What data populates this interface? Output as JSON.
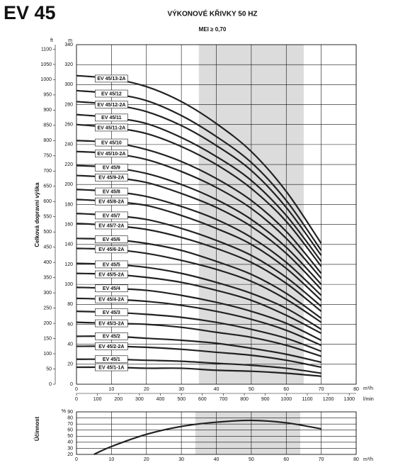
{
  "chart_data": [
    {
      "type": "line",
      "title": "EV 45",
      "subtitle": "VÝKONOVÉ KŘIVKY 50 HZ",
      "annotation": "MEI ≥ 0,70",
      "ylabel": "Celková dopravní výška",
      "y_unit": "m",
      "y2_unit": "ft",
      "xlabel": "m³/h",
      "x2label": "l/min",
      "x": [
        0,
        10,
        20,
        30,
        40,
        50,
        60,
        70
      ],
      "series": [
        {
          "name": "EV 45/13-2A",
          "color": "#222222",
          "values": [
            309,
            306,
            298,
            283,
            261,
            233,
            193,
            141
          ]
        },
        {
          "name": "EV 45/12",
          "color": "#222222",
          "values": [
            294,
            291,
            284,
            269,
            248,
            222,
            184,
            134
          ]
        },
        {
          "name": "EV 45/12-2A",
          "color": "#222222",
          "values": [
            283,
            280,
            273,
            259,
            239,
            214,
            177,
            129
          ]
        },
        {
          "name": "EV 45/11",
          "color": "#222222",
          "values": [
            270,
            267,
            261,
            247,
            228,
            204,
            169,
            123
          ]
        },
        {
          "name": "EV 45/11-2A",
          "color": "#222222",
          "values": [
            260,
            257,
            251,
            238,
            220,
            196,
            163,
            118
          ]
        },
        {
          "name": "EV 45/10",
          "color": "#222222",
          "values": [
            244,
            242,
            235,
            223,
            206,
            184,
            153,
            111
          ]
        },
        {
          "name": "EV 45/10-2A",
          "color": "#222222",
          "values": [
            233,
            231,
            225,
            213,
            197,
            176,
            146,
            106
          ]
        },
        {
          "name": "EV 45/9",
          "color": "#222222",
          "values": [
            219,
            217,
            211,
            200,
            185,
            165,
            137,
            100
          ]
        },
        {
          "name": "EV 45/9-2A",
          "color": "#222222",
          "values": [
            209,
            207,
            202,
            191,
            177,
            158,
            131,
            95
          ]
        },
        {
          "name": "EV 45/8",
          "color": "#222222",
          "values": [
            195,
            193,
            188,
            178,
            165,
            147,
            122,
            89
          ]
        },
        {
          "name": "EV 45/8-2A",
          "color": "#222222",
          "values": [
            185,
            183,
            179,
            169,
            156,
            140,
            116,
            84
          ]
        },
        {
          "name": "EV 45/7",
          "color": "#222222",
          "values": [
            171,
            169,
            165,
            156,
            144,
            129,
            107,
            78
          ]
        },
        {
          "name": "EV 45/7-2A",
          "color": "#222222",
          "values": [
            161,
            159,
            155,
            147,
            136,
            122,
            101,
            73
          ]
        },
        {
          "name": "EV 45/6",
          "color": "#222222",
          "values": [
            146,
            145,
            141,
            134,
            123,
            110,
            91,
            66
          ]
        },
        {
          "name": "EV 45/6-2A",
          "color": "#222222",
          "values": [
            136,
            135,
            131,
            124,
            115,
            103,
            85,
            62
          ]
        },
        {
          "name": "EV 45/5",
          "color": "#222222",
          "values": [
            121,
            120,
            117,
            111,
            102,
            91,
            76,
            55
          ]
        },
        {
          "name": "EV 45/5-2A",
          "color": "#222222",
          "values": [
            111,
            110,
            107,
            102,
            94,
            84,
            69,
            51
          ]
        },
        {
          "name": "EV 45/4",
          "color": "#222222",
          "values": [
            97,
            96,
            94,
            89,
            82,
            73,
            61,
            44
          ]
        },
        {
          "name": "EV 45/4-2A",
          "color": "#222222",
          "values": [
            86,
            85,
            83,
            79,
            73,
            65,
            54,
            39
          ]
        },
        {
          "name": "EV 45/3",
          "color": "#222222",
          "values": [
            73,
            72,
            70,
            67,
            62,
            55,
            46,
            33
          ]
        },
        {
          "name": "EV 45/3-2A",
          "color": "#222222",
          "values": [
            62,
            61,
            60,
            57,
            52,
            47,
            39,
            28
          ]
        },
        {
          "name": "EV 45/2",
          "color": "#222222",
          "values": [
            48,
            48,
            46,
            44,
            41,
            36,
            30,
            22
          ]
        },
        {
          "name": "EV 45/2-2A",
          "color": "#222222",
          "values": [
            38,
            38,
            37,
            35,
            32,
            29,
            24,
            17
          ]
        },
        {
          "name": "EV 45/1",
          "color": "#222222",
          "values": [
            25,
            25,
            24,
            23,
            21,
            19,
            16,
            11
          ]
        },
        {
          "name": "EV 45/1-1A",
          "color": "#222222",
          "values": [
            17,
            17,
            16,
            16,
            14,
            13,
            11,
            8
          ]
        }
      ],
      "xlim": [
        0,
        80
      ],
      "xticks": [
        0,
        10,
        20,
        30,
        40,
        50,
        60,
        70,
        80
      ],
      "x2lim": [
        0,
        1333
      ],
      "x2ticks": [
        0,
        100,
        200,
        300,
        400,
        500,
        600,
        700,
        800,
        900,
        1000,
        1100,
        1200,
        1300
      ],
      "ylim": [
        0,
        340
      ],
      "yticks": [
        0,
        20,
        40,
        60,
        80,
        100,
        120,
        140,
        160,
        180,
        200,
        220,
        240,
        260,
        280,
        300,
        320,
        340
      ],
      "y2lim": [
        0,
        1115
      ],
      "y2ticks": [
        0,
        50,
        100,
        150,
        200,
        250,
        300,
        350,
        400,
        450,
        500,
        550,
        600,
        650,
        700,
        750,
        800,
        850,
        900,
        950,
        1000,
        1050,
        1100
      ],
      "highlight": [
        35,
        65
      ],
      "highlight_color": "#dcdcdc",
      "grid": true
    },
    {
      "type": "line",
      "ylabel": "Účinnost",
      "y_unit": "%",
      "xlabel": "m³/h",
      "x": [
        5,
        10,
        20,
        30,
        40,
        50,
        60,
        70
      ],
      "values": [
        20,
        33,
        53,
        66,
        73,
        76,
        72,
        62
      ],
      "color": "#222222",
      "xlim": [
        0,
        80
      ],
      "xticks": [
        0,
        10,
        20,
        30,
        40,
        50,
        60,
        70,
        80
      ],
      "ylim": [
        20,
        90
      ],
      "yticks": [
        20,
        30,
        40,
        50,
        60,
        70,
        80,
        90
      ],
      "highlight": [
        34,
        64
      ],
      "highlight_color": "#dcdcdc",
      "grid": true
    }
  ]
}
